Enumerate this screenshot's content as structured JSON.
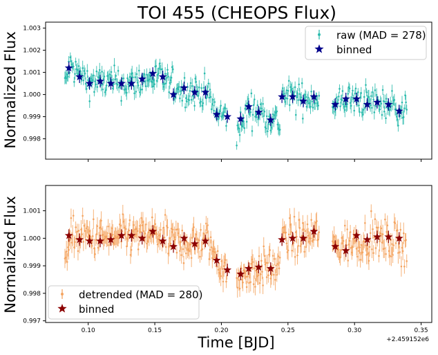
{
  "colors": {
    "raw": "#2bbbad",
    "binned_top": "#00008b",
    "detrended": "#f4a460",
    "binned_bottom": "#8b0000"
  },
  "chart_data": [
    {
      "type": "scatter",
      "title": "TOI 455 (CHEOPS Flux)",
      "xlabel": "",
      "ylabel": "Normalized Flux",
      "xlim": [
        0.068,
        0.358
      ],
      "ylim": [
        0.99708,
        1.00327
      ],
      "xticks": [
        0.1,
        0.15,
        0.2,
        0.25,
        0.3,
        0.35
      ],
      "yticks": [
        0.998,
        0.999,
        1.0,
        1.001,
        1.002,
        1.003
      ],
      "ytick_labels": [
        "0.998",
        "0.999",
        "1.000",
        "1.001",
        "1.002",
        "1.003"
      ],
      "legend": {
        "position": "top-right",
        "entries": [
          "raw (MAD = 278)",
          "binned"
        ]
      },
      "segments": [
        {
          "x": [
            0.0825,
            0.1545
          ],
          "trend": [
            [
              0.0825,
              1.0004
            ],
            [
              0.086,
              1.0013
            ],
            [
              0.1,
              1.0006
            ],
            [
              0.13,
              1.0005
            ],
            [
              0.1545,
              1.0008
            ]
          ]
        },
        {
          "x": [
            0.1555,
            0.2045
          ],
          "trend": [
            [
              0.1555,
              1.0007
            ],
            [
              0.17,
              1.0002
            ],
            [
              0.19,
              1.0001
            ],
            [
              0.196,
              0.9991
            ],
            [
              0.2045,
              0.999
            ]
          ]
        },
        {
          "x": [
            0.2115,
            0.2445
          ],
          "trend": [
            [
              0.2115,
              0.9983
            ],
            [
              0.216,
              0.9987
            ],
            [
              0.22,
              0.9994
            ],
            [
              0.23,
              0.9992
            ],
            [
              0.2445,
              0.9987
            ]
          ]
        },
        {
          "x": [
            0.2455,
            0.2735
          ],
          "trend": [
            [
              0.2455,
              1.0
            ],
            [
              0.26,
              0.9998
            ],
            [
              0.2735,
              0.9999
            ]
          ]
        },
        {
          "x": [
            0.2835,
            0.3395
          ],
          "trend": [
            [
              0.2835,
              0.9992
            ],
            [
              0.29,
              0.9998
            ],
            [
              0.31,
              0.9997
            ],
            [
              0.33,
              0.9995
            ],
            [
              0.3395,
              0.9991
            ]
          ]
        }
      ],
      "series": [
        {
          "name": "binned",
          "x": [
            0.0855,
            0.0935,
            0.101,
            0.109,
            0.117,
            0.125,
            0.1325,
            0.1405,
            0.1485,
            0.156,
            0.164,
            0.172,
            0.18,
            0.188,
            0.1965,
            0.2045,
            0.2145,
            0.2205,
            0.228,
            0.237,
            0.2455,
            0.2535,
            0.2615,
            0.2695,
            0.2855,
            0.2935,
            0.3015,
            0.3095,
            0.317,
            0.3255,
            0.3335
          ],
          "y": [
            1.0012,
            1.0008,
            1.0005,
            1.0006,
            1.0005,
            1.0005,
            1.0005,
            1.0007,
            1.00095,
            1.0008,
            1.0,
            1.0003,
            1.0001,
            1.0001,
            0.9991,
            0.999,
            0.9989,
            0.99945,
            0.9992,
            0.99885,
            0.9999,
            0.9999,
            0.9997,
            0.9999,
            0.99955,
            0.9998,
            0.9998,
            0.99955,
            0.99965,
            0.99955,
            0.99925
          ]
        }
      ]
    },
    {
      "type": "scatter",
      "title": "",
      "xlabel": "Time [BJD]",
      "ylabel": "Normalized Flux",
      "offset_label": "+2.459152e6",
      "xlim": [
        0.068,
        0.358
      ],
      "ylim": [
        0.99694,
        1.00192
      ],
      "xticks": [
        0.1,
        0.15,
        0.2,
        0.25,
        0.3,
        0.35
      ],
      "xtick_labels": [
        "0.10",
        "0.15",
        "0.20",
        "0.25",
        "0.30",
        "0.35"
      ],
      "yticks": [
        0.997,
        0.998,
        0.999,
        1.0,
        1.001
      ],
      "ytick_labels": [
        "0.997",
        "0.998",
        "0.999",
        "1.000",
        "1.001"
      ],
      "legend": {
        "position": "bottom-left",
        "entries": [
          "detrended (MAD = 280)",
          "binned"
        ]
      },
      "segments": [
        {
          "x": [
            0.0825,
            0.1545
          ],
          "trend": [
            [
              0.0825,
              0.9996
            ],
            [
              0.088,
              1.0001
            ],
            [
              0.12,
              1.0
            ],
            [
              0.1545,
              1.0002
            ]
          ]
        },
        {
          "x": [
            0.1555,
            0.2045
          ],
          "trend": [
            [
              0.1555,
              0.99995
            ],
            [
              0.17,
              0.9998
            ],
            [
              0.19,
              0.9999
            ],
            [
              0.197,
              0.9992
            ],
            [
              0.2045,
              0.9989
            ]
          ]
        },
        {
          "x": [
            0.2115,
            0.2445
          ],
          "trend": [
            [
              0.2115,
              0.9982
            ],
            [
              0.216,
              0.9987
            ],
            [
              0.23,
              0.9989
            ],
            [
              0.2445,
              0.999
            ]
          ]
        },
        {
          "x": [
            0.2455,
            0.2735
          ],
          "trend": [
            [
              0.2455,
              1.0
            ],
            [
              0.26,
              1.0
            ],
            [
              0.2735,
              1.0002
            ]
          ]
        },
        {
          "x": [
            0.2835,
            0.3395
          ],
          "trend": [
            [
              0.2835,
              0.9997
            ],
            [
              0.295,
              0.9998
            ],
            [
              0.31,
              1.0
            ],
            [
              0.3395,
              0.9998
            ]
          ]
        }
      ],
      "series": [
        {
          "name": "binned",
          "x": [
            0.0855,
            0.0935,
            0.101,
            0.109,
            0.117,
            0.125,
            0.1325,
            0.1405,
            0.1485,
            0.156,
            0.164,
            0.172,
            0.18,
            0.188,
            0.1965,
            0.2045,
            0.2145,
            0.2205,
            0.228,
            0.237,
            0.2455,
            0.2535,
            0.2615,
            0.2695,
            0.2855,
            0.2935,
            0.3015,
            0.3095,
            0.317,
            0.3255,
            0.3335
          ],
          "y": [
            1.0001,
            0.99995,
            0.9999,
            0.9999,
            0.99995,
            1.0001,
            1.0001,
            1.0,
            1.00025,
            0.9999,
            0.9997,
            1.0,
            0.9998,
            0.9999,
            0.9992,
            0.99885,
            0.9987,
            0.9989,
            0.99895,
            0.9989,
            0.99995,
            1.0,
            1.0,
            1.00025,
            0.9997,
            0.99955,
            1.0001,
            0.99995,
            1.00005,
            1.00005,
            1.0
          ]
        }
      ]
    }
  ]
}
